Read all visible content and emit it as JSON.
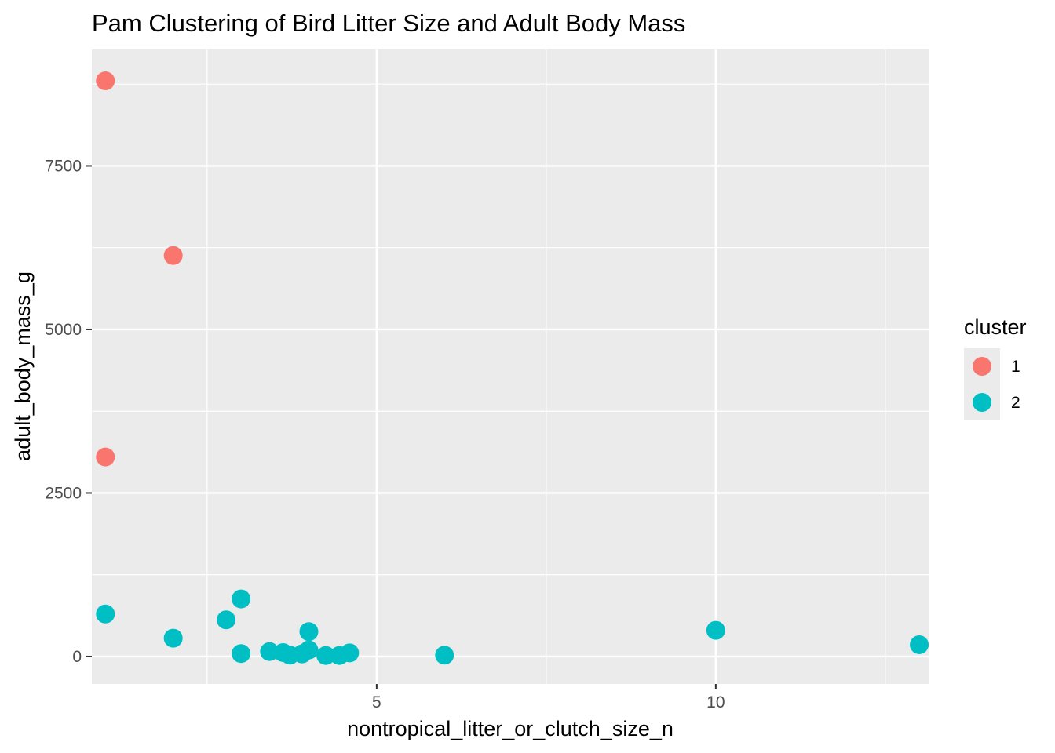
{
  "chart_data": {
    "type": "scatter",
    "title": "Pam Clustering of Bird Litter Size and Adult Body Mass",
    "xlabel": "nontropical_litter_or_clutch_size_n",
    "ylabel": "adult_body_mass_g",
    "xlim": [
      0.8,
      13.15
    ],
    "ylim": [
      -420,
      9280
    ],
    "x_ticks": [
      5,
      10
    ],
    "x_tick_labels": [
      "5",
      "10"
    ],
    "y_ticks": [
      0,
      2500,
      5000,
      7500
    ],
    "y_tick_labels": [
      "0",
      "2500",
      "5000",
      "7500"
    ],
    "grid": true,
    "legend": {
      "title": "cluster",
      "position": "right",
      "entries": [
        {
          "label": "1",
          "color": "#F8766D"
        },
        {
          "label": "2",
          "color": "#00BFC4"
        }
      ]
    },
    "series": [
      {
        "name": "1",
        "color": "#F8766D",
        "points": [
          {
            "x": 1.0,
            "y": 8800
          },
          {
            "x": 2.0,
            "y": 6130
          },
          {
            "x": 1.0,
            "y": 3050
          }
        ]
      },
      {
        "name": "2",
        "color": "#00BFC4",
        "points": [
          {
            "x": 1.0,
            "y": 650
          },
          {
            "x": 2.0,
            "y": 280
          },
          {
            "x": 2.78,
            "y": 560
          },
          {
            "x": 3.0,
            "y": 880
          },
          {
            "x": 3.0,
            "y": 45
          },
          {
            "x": 3.42,
            "y": 75
          },
          {
            "x": 3.62,
            "y": 60
          },
          {
            "x": 3.72,
            "y": 20
          },
          {
            "x": 3.9,
            "y": 40
          },
          {
            "x": 4.0,
            "y": 380
          },
          {
            "x": 4.0,
            "y": 100
          },
          {
            "x": 4.25,
            "y": 15
          },
          {
            "x": 4.45,
            "y": 15
          },
          {
            "x": 4.6,
            "y": 55
          },
          {
            "x": 6.0,
            "y": 20
          },
          {
            "x": 10.0,
            "y": 400
          },
          {
            "x": 13.0,
            "y": 180
          }
        ]
      }
    ]
  }
}
